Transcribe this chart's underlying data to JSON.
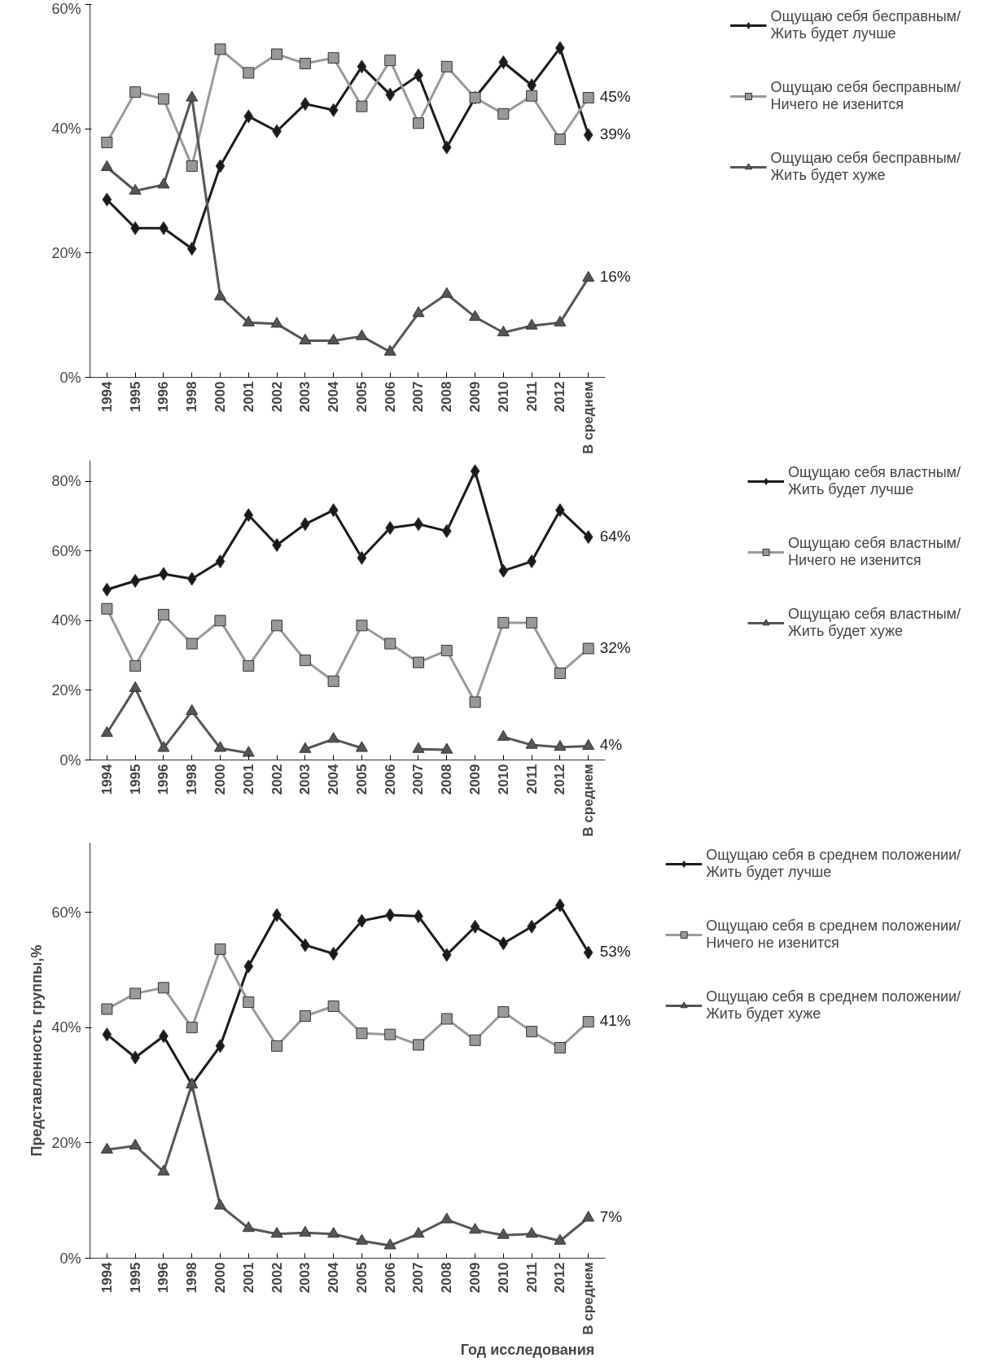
{
  "chart_data": [
    {
      "type": "line",
      "categories": [
        "1994",
        "1995",
        "1996",
        "1998",
        "2000",
        "2001",
        "2002",
        "2003",
        "2004",
        "2005",
        "2006",
        "2007",
        "2008",
        "2009",
        "2010",
        "2011",
        "2012",
        "В среднем"
      ],
      "ylim": [
        0,
        60
      ],
      "yticks": [
        {
          "value": 0,
          "label": "0%"
        },
        {
          "value": 20,
          "label": "20%"
        },
        {
          "value": 40,
          "label": "40%"
        },
        {
          "value": 60,
          "label": "60%"
        }
      ],
      "grid": false,
      "legend": "right",
      "series": [
        {
          "name": "Ощущаю себя бесправным/ Жить будет лучше",
          "color": "#1a1a1a",
          "marker": "diamond",
          "values": [
            28.6,
            24,
            24,
            20.7,
            34,
            42,
            39.6,
            44,
            43,
            50,
            45.5,
            48.6,
            37,
            45,
            50.7,
            47,
            53,
            39
          ],
          "value_labels": [
            null,
            null,
            null,
            null,
            null,
            null,
            null,
            null,
            null,
            null,
            null,
            null,
            null,
            null,
            null,
            null,
            null,
            "39%"
          ]
        },
        {
          "name": "Ощущаю себя бесправным/ Ничего не изенится",
          "color": "#999999",
          "marker": "square",
          "values": [
            37.8,
            45.9,
            44.8,
            34,
            52.8,
            49,
            52,
            50.5,
            51.4,
            43.6,
            51,
            40.9,
            50,
            45,
            42.4,
            45.3,
            38.3,
            45
          ],
          "value_labels": [
            null,
            null,
            null,
            null,
            null,
            null,
            null,
            null,
            null,
            null,
            null,
            null,
            null,
            null,
            null,
            null,
            null,
            "45%"
          ]
        },
        {
          "name": "Ощущаю себя бесправным/ Жить будет хуже",
          "color": "#555555",
          "marker": "triangle",
          "values": [
            33.8,
            30,
            31,
            45,
            13,
            8.8,
            8.6,
            5.9,
            5.9,
            6.6,
            4.1,
            10.3,
            13.4,
            9.7,
            7.2,
            8.3,
            8.8,
            16
          ],
          "value_labels": [
            null,
            null,
            null,
            null,
            null,
            null,
            null,
            null,
            null,
            null,
            null,
            null,
            null,
            null,
            null,
            null,
            null,
            "16%"
          ]
        }
      ]
    },
    {
      "type": "line",
      "categories": [
        "1994",
        "1995",
        "1996",
        "1998",
        "2000",
        "2001",
        "2002",
        "2003",
        "2004",
        "2005",
        "2006",
        "2007",
        "2008",
        "2009",
        "2010",
        "2011",
        "2012",
        "В среднем"
      ],
      "ylim": [
        0,
        86
      ],
      "yticks": [
        {
          "value": 0,
          "label": "0%"
        },
        {
          "value": 20,
          "label": "20%"
        },
        {
          "value": 40,
          "label": "40%"
        },
        {
          "value": 60,
          "label": "60%"
        },
        {
          "value": 80,
          "label": "80%"
        }
      ],
      "grid": false,
      "legend": "right",
      "series": [
        {
          "name": "Ощущаю себя властным/ Жить будет лучше",
          "color": "#1a1a1a",
          "marker": "diamond",
          "values": [
            48.9,
            51.4,
            53.4,
            52,
            57,
            70.3,
            61.7,
            67.7,
            71.7,
            58,
            66.6,
            67.7,
            65.7,
            82.9,
            54.3,
            57,
            71.7,
            64
          ],
          "value_labels": [
            null,
            null,
            null,
            null,
            null,
            null,
            null,
            null,
            null,
            null,
            null,
            null,
            null,
            null,
            null,
            null,
            null,
            "64%"
          ]
        },
        {
          "name": "Ощущаю себя властным/ Ничего не изенится",
          "color": "#999999",
          "marker": "square",
          "values": [
            43.4,
            27,
            41.7,
            33.4,
            40,
            27,
            38.6,
            28.6,
            22.6,
            38.6,
            33.4,
            28,
            31.4,
            16.6,
            39.4,
            39.4,
            24.9,
            32
          ],
          "value_labels": [
            null,
            null,
            null,
            null,
            null,
            null,
            null,
            null,
            null,
            null,
            null,
            null,
            null,
            null,
            null,
            null,
            null,
            "32%"
          ]
        },
        {
          "name": "Ощущаю себя властным/ Жить будет хуже",
          "color": "#555555",
          "marker": "triangle",
          "values": [
            7.7,
            20.6,
            3.4,
            14,
            3.4,
            2,
            null,
            3.1,
            6,
            3.4,
            null,
            3.1,
            2.9,
            null,
            6.6,
            4.3,
            3.7,
            4
          ],
          "value_labels": [
            null,
            null,
            null,
            null,
            null,
            null,
            null,
            null,
            null,
            null,
            null,
            null,
            null,
            null,
            null,
            null,
            null,
            "4%"
          ]
        }
      ]
    },
    {
      "type": "line",
      "categories": [
        "1994",
        "1995",
        "1996",
        "1998",
        "2000",
        "2001",
        "2002",
        "2003",
        "2004",
        "2005",
        "2006",
        "2007",
        "2008",
        "2009",
        "2010",
        "2011",
        "2012",
        "В среднем"
      ],
      "ylim": [
        0,
        72
      ],
      "yticks": [
        {
          "value": 0,
          "label": "0%"
        },
        {
          "value": 20,
          "label": "20%"
        },
        {
          "value": 40,
          "label": "40%"
        },
        {
          "value": 60,
          "label": "60%"
        }
      ],
      "grid": false,
      "legend": "right",
      "ylabel": "Представленность группы,%",
      "xlabel": "Год исследования",
      "series": [
        {
          "name": "Ощущаю себя в среднем положении/ Жить будет лучше",
          "color": "#1a1a1a",
          "marker": "diamond",
          "values": [
            38.8,
            34.8,
            38.5,
            30.1,
            36.8,
            50.6,
            59.5,
            54.3,
            52.8,
            58.5,
            59.5,
            59.3,
            52.6,
            57.5,
            54.6,
            57.5,
            61.2,
            53
          ],
          "value_labels": [
            null,
            null,
            null,
            null,
            null,
            null,
            null,
            null,
            null,
            null,
            null,
            null,
            null,
            null,
            null,
            null,
            null,
            "53%"
          ]
        },
        {
          "name": "Ощущаю себя в среднем положении/ Ничего не изенится",
          "color": "#999999",
          "marker": "square",
          "values": [
            43.2,
            45.9,
            46.9,
            40,
            53.6,
            44.4,
            36.8,
            42,
            43.7,
            39,
            38.8,
            37,
            41.5,
            37.8,
            42.7,
            39.3,
            36.5,
            41
          ],
          "value_labels": [
            null,
            null,
            null,
            null,
            null,
            null,
            null,
            null,
            null,
            null,
            null,
            null,
            null,
            null,
            null,
            null,
            null,
            "41%"
          ]
        },
        {
          "name": "Ощущаю себя в среднем положении/ Жить будет хуже",
          "color": "#555555",
          "marker": "triangle",
          "values": [
            18.8,
            19.5,
            15,
            30.1,
            9.1,
            5.2,
            4.2,
            4.4,
            4.2,
            3,
            2.2,
            4.2,
            6.7,
            4.9,
            4,
            4.2,
            3,
            7
          ],
          "value_labels": [
            null,
            null,
            null,
            null,
            null,
            null,
            null,
            null,
            null,
            null,
            null,
            null,
            null,
            null,
            null,
            null,
            null,
            "7%"
          ]
        }
      ]
    }
  ]
}
